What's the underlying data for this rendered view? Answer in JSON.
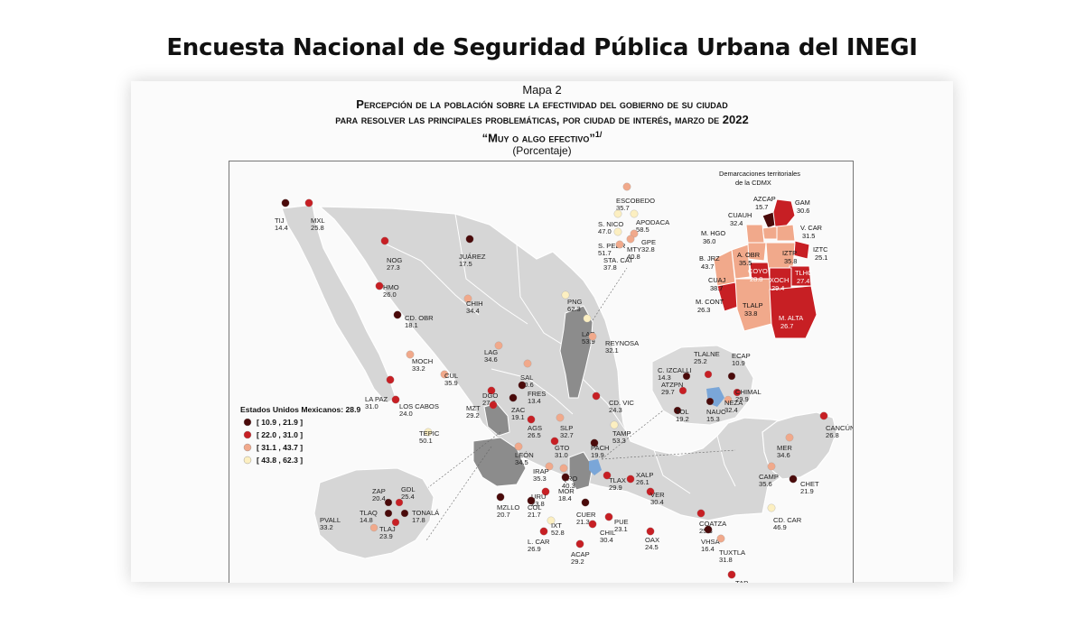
{
  "headline": "Encuesta Nacional de Seguridad Pública Urbana del INEGI",
  "map": {
    "number": "Mapa 2",
    "title_line1": "Percepción de la población sobre la efectividad del gobierno de su ciudad",
    "title_line2": "para resolver las principales problemáticas, por ciudad de interés, marzo de 2022",
    "title_line3": "“Muy o algo efectivo”",
    "footnote_mark": "1/",
    "units": "(Porcentaje)"
  },
  "legend": {
    "national": "Estados Unidos Mexicanos: 28.9",
    "classes": [
      {
        "label": "[ 10.9 , 21.9 ]",
        "color": "#4a0a0a"
      },
      {
        "label": "[ 22.0 , 31.0 ]",
        "color": "#c71f24"
      },
      {
        "label": "[ 31.1 , 43.7 ]",
        "color": "#f1a98b"
      },
      {
        "label": "[ 43.8 , 62.3 ]",
        "color": "#fcefc1"
      }
    ]
  },
  "cdmx_inset": {
    "title_line1": "Demarcaciones territoriales",
    "title_line2": "de la CDMX",
    "labels": [
      {
        "name": "AZCAP",
        "value": "15.7"
      },
      {
        "name": "GAM",
        "value": "30.6"
      },
      {
        "name": "CUAUH",
        "value": "32.4"
      },
      {
        "name": "V. CAR",
        "value": "31.5"
      },
      {
        "name": "M. HGO",
        "value": "36.0"
      },
      {
        "name": "IZTC",
        "value": "25.1"
      },
      {
        "name": "B. JRZ",
        "value": "43.7"
      },
      {
        "name": "A. OBR",
        "value": "35.5"
      },
      {
        "name": "IZTP",
        "value": "35.8"
      },
      {
        "name": "CUAJ",
        "value": "38.7"
      },
      {
        "name": "COYO",
        "value": "28.8"
      },
      {
        "name": "TLHC",
        "value": "27.4"
      },
      {
        "name": "XOCH",
        "value": "29.4"
      },
      {
        "name": "M. CONT",
        "value": "26.3"
      },
      {
        "name": "TLALP",
        "value": "33.8"
      },
      {
        "name": "M. ALTA",
        "value": "26.7"
      }
    ]
  },
  "cities": [
    {
      "name": "TIJ",
      "value": "14.4",
      "class": 0
    },
    {
      "name": "MXL",
      "value": "25.8",
      "class": 1
    },
    {
      "name": "NOG",
      "value": "27.3",
      "class": 1
    },
    {
      "name": "JUÁREZ",
      "value": "17.5",
      "class": 0
    },
    {
      "name": "HMO",
      "value": "26.0",
      "class": 1
    },
    {
      "name": "CHIH",
      "value": "34.4",
      "class": 2
    },
    {
      "name": "CD. OBR",
      "value": "18.1",
      "class": 0
    },
    {
      "name": "LAG",
      "value": "34.6",
      "class": 2
    },
    {
      "name": "MOCH",
      "value": "33.2",
      "class": 2
    },
    {
      "name": "CUL",
      "value": "35.9",
      "class": 2
    },
    {
      "name": "DGO",
      "value": "27.8",
      "class": 1
    },
    {
      "name": "LA PAZ",
      "value": "31.0",
      "class": 1
    },
    {
      "name": "LOS CABOS",
      "value": "24.0",
      "class": 1
    },
    {
      "name": "MZT",
      "value": "29.2",
      "class": 1
    },
    {
      "name": "ESCOBEDO",
      "value": "35.7",
      "class": 2
    },
    {
      "name": "S. NICO",
      "value": "47.0",
      "class": 3
    },
    {
      "name": "APODACA",
      "value": "58.5",
      "class": 3
    },
    {
      "name": "S. PEDR",
      "value": "51.7",
      "class": 3
    },
    {
      "name": "GPE",
      "value": "32.8",
      "class": 2
    },
    {
      "name": "MTY",
      "value": "40.8",
      "class": 2
    },
    {
      "name": "STA. CAT",
      "value": "37.8",
      "class": 2
    },
    {
      "name": "PNG",
      "value": "62.3",
      "class": 3
    },
    {
      "name": "LAR",
      "value": "53.9",
      "class": 3
    },
    {
      "name": "REYNOSA",
      "value": "32.1",
      "class": 2
    },
    {
      "name": "SAL",
      "value": "40.6",
      "class": 2
    },
    {
      "name": "FRES",
      "value": "13.4",
      "class": 0
    },
    {
      "name": "ZAC",
      "value": "19.1",
      "class": 0
    },
    {
      "name": "CD. VIC",
      "value": "24.3",
      "class": 1
    },
    {
      "name": "AGS",
      "value": "26.5",
      "class": 1
    },
    {
      "name": "SLP",
      "value": "32.7",
      "class": 2
    },
    {
      "name": "TAMP",
      "value": "53.3",
      "class": 3
    },
    {
      "name": "TEPIC",
      "value": "50.1",
      "class": 3
    },
    {
      "name": "LEÓN",
      "value": "34.5",
      "class": 2
    },
    {
      "name": "GTO",
      "value": "31.0",
      "class": 1
    },
    {
      "name": "PACH",
      "value": "19.9",
      "class": 0
    },
    {
      "name": "IRAP",
      "value": "35.3",
      "class": 2
    },
    {
      "name": "QRO",
      "value": "40.3",
      "class": 2
    },
    {
      "name": "TLAX",
      "value": "29.9",
      "class": 1
    },
    {
      "name": "XALP",
      "value": "26.1",
      "class": 1
    },
    {
      "name": "MOR",
      "value": "18.4",
      "class": 0
    },
    {
      "name": "URU",
      "value": "23.8",
      "class": 1
    },
    {
      "name": "VER",
      "value": "30.4",
      "class": 1
    },
    {
      "name": "MZLLO",
      "value": "20.7",
      "class": 0
    },
    {
      "name": "COL",
      "value": "21.7",
      "class": 0
    },
    {
      "name": "CUER",
      "value": "21.3",
      "class": 0
    },
    {
      "name": "PUE",
      "value": "23.1",
      "class": 1
    },
    {
      "name": "IXT",
      "value": "52.8",
      "class": 3
    },
    {
      "name": "CHIL",
      "value": "30.4",
      "class": 1
    },
    {
      "name": "L. CAR",
      "value": "26.9",
      "class": 1
    },
    {
      "name": "ACAP",
      "value": "29.2",
      "class": 1
    },
    {
      "name": "OAX",
      "value": "24.5",
      "class": 1
    },
    {
      "name": "COATZA",
      "value": "25.3",
      "class": 1
    },
    {
      "name": "VHSA",
      "value": "16.4",
      "class": 0
    },
    {
      "name": "CD. CAR",
      "value": "46.9",
      "class": 3
    },
    {
      "name": "TUXTLA",
      "value": "31.8",
      "class": 2
    },
    {
      "name": "TAP",
      "value": "25.6",
      "class": 1
    },
    {
      "name": "CANCÚN",
      "value": "26.8",
      "class": 1
    },
    {
      "name": "MER",
      "value": "34.6",
      "class": 2
    },
    {
      "name": "CAMP",
      "value": "35.6",
      "class": 2
    },
    {
      "name": "CHET",
      "value": "21.9",
      "class": 0
    }
  ],
  "edomex_inset": [
    {
      "name": "C. IZCALLI",
      "value": "14.3",
      "class": 0
    },
    {
      "name": "TLALNE",
      "value": "25.2",
      "class": 1
    },
    {
      "name": "ECAP",
      "value": "10.9",
      "class": 0
    },
    {
      "name": "ATZPN",
      "value": "29.7",
      "class": 1
    },
    {
      "name": "CHIMAL",
      "value": "29.9",
      "class": 1
    },
    {
      "name": "TOL",
      "value": "19.2",
      "class": 0
    },
    {
      "name": "NAUC",
      "value": "15.3",
      "class": 0
    },
    {
      "name": "NEZA",
      "value": "32.4",
      "class": 2
    }
  ],
  "jalisco_inset": [
    {
      "name": "ZAP",
      "value": "20.4",
      "class": 0
    },
    {
      "name": "GDL",
      "value": "25.4",
      "class": 1
    },
    {
      "name": "TLAQ",
      "value": "14.8",
      "class": 0
    },
    {
      "name": "TONALÁ",
      "value": "17.8",
      "class": 0
    },
    {
      "name": "PVALL",
      "value": "33.2",
      "class": 2
    },
    {
      "name": "TLAJ",
      "value": "23.9",
      "class": 1
    }
  ]
}
